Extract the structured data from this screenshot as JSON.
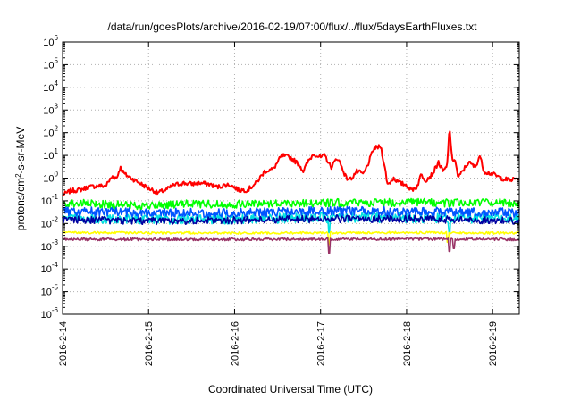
{
  "chart_data": {
    "type": "line",
    "title": "/data/run/goesPlots/archive/2016-02-19/07:00/flux/../flux/5daysEarthFluxes.txt",
    "xlabel": "Coordinated Universal Time (UTC)",
    "ylabel": "protons/cm²-s-sr-MeV",
    "ylabel_parts": [
      "protons/cm",
      "2",
      "-s-sr-MeV"
    ],
    "y_scale": "log",
    "ylim": [
      1e-06,
      1000000.0
    ],
    "y_ticks": [
      {
        "exp": "-6",
        "value": 1e-06
      },
      {
        "exp": "-5",
        "value": 1e-05
      },
      {
        "exp": "-4",
        "value": 0.0001
      },
      {
        "exp": "-3",
        "value": 0.001
      },
      {
        "exp": "-2",
        "value": 0.01
      },
      {
        "exp": "-1",
        "value": 0.1
      },
      {
        "exp": "0",
        "value": 1
      },
      {
        "exp": "1",
        "value": 10
      },
      {
        "exp": "2",
        "value": 100
      },
      {
        "exp": "3",
        "value": 1000
      },
      {
        "exp": "4",
        "value": 10000
      },
      {
        "exp": "5",
        "value": 100000
      },
      {
        "exp": "6",
        "value": 1000000
      }
    ],
    "x_ticks": [
      "2016-2-14",
      "2016-2-15",
      "2016-2-16",
      "2016-2-17",
      "2016-2-18",
      "2016-2-19"
    ],
    "xlim_days": [
      0,
      5.31
    ],
    "grid": true,
    "legend": "none",
    "series": [
      {
        "color": "#ff0000",
        "base_points": [
          [
            0.0,
            0.18
          ],
          [
            0.1,
            0.28
          ],
          [
            0.2,
            0.3
          ],
          [
            0.3,
            0.4
          ],
          [
            0.4,
            0.45
          ],
          [
            0.5,
            0.45
          ],
          [
            0.58,
            1.2
          ],
          [
            0.63,
            1.0
          ],
          [
            0.67,
            3.0
          ],
          [
            0.72,
            1.5
          ],
          [
            0.8,
            1.0
          ],
          [
            0.9,
            0.6
          ],
          [
            1.0,
            0.35
          ],
          [
            1.05,
            0.3
          ],
          [
            1.1,
            0.22
          ],
          [
            1.2,
            0.3
          ],
          [
            1.3,
            0.5
          ],
          [
            1.4,
            0.6
          ],
          [
            1.5,
            0.55
          ],
          [
            1.6,
            0.6
          ],
          [
            1.7,
            0.55
          ],
          [
            1.8,
            0.4
          ],
          [
            1.9,
            0.5
          ],
          [
            1.95,
            0.5
          ],
          [
            2.05,
            0.3
          ],
          [
            2.15,
            0.3
          ],
          [
            2.25,
            0.6
          ],
          [
            2.35,
            2.0
          ],
          [
            2.45,
            2.5
          ],
          [
            2.55,
            10.0
          ],
          [
            2.65,
            8.0
          ],
          [
            2.75,
            4.0
          ],
          [
            2.8,
            2.0
          ],
          [
            2.85,
            5.0
          ],
          [
            2.92,
            12.0
          ],
          [
            3.0,
            8.0
          ],
          [
            3.05,
            10.0
          ],
          [
            3.12,
            3.0
          ],
          [
            3.2,
            8.0
          ],
          [
            3.3,
            1.0
          ],
          [
            3.35,
            0.9
          ],
          [
            3.42,
            2.0
          ],
          [
            3.5,
            1.5
          ],
          [
            3.55,
            4.0
          ],
          [
            3.62,
            20.0
          ],
          [
            3.7,
            25.0
          ],
          [
            3.75,
            2.5
          ],
          [
            3.78,
            0.5
          ],
          [
            3.85,
            1.0
          ],
          [
            3.92,
            0.6
          ],
          [
            4.0,
            0.5
          ],
          [
            4.05,
            0.3
          ],
          [
            4.12,
            0.4
          ],
          [
            4.17,
            1.5
          ],
          [
            4.22,
            0.8
          ],
          [
            4.3,
            1.5
          ],
          [
            4.37,
            5.0
          ],
          [
            4.42,
            2.0
          ],
          [
            4.47,
            3.0
          ],
          [
            4.5,
            200
          ],
          [
            4.53,
            5.0
          ],
          [
            4.56,
            8.0
          ],
          [
            4.6,
            1.0
          ],
          [
            4.65,
            2.0
          ],
          [
            4.72,
            5.0
          ],
          [
            4.8,
            3.0
          ],
          [
            4.85,
            10.0
          ],
          [
            4.9,
            2.0
          ],
          [
            5.0,
            1.5
          ],
          [
            5.1,
            1.0
          ],
          [
            5.2,
            0.8
          ],
          [
            5.31,
            1.0
          ]
        ],
        "jitter_decades": 0.1,
        "dips": [],
        "stroke_width": 2.0
      },
      {
        "color": "#00ff00",
        "base_points": [
          [
            0.0,
            0.08
          ],
          [
            0.5,
            0.07
          ],
          [
            1.0,
            0.06
          ],
          [
            1.5,
            0.075
          ],
          [
            2.0,
            0.07
          ],
          [
            2.5,
            0.08
          ],
          [
            3.0,
            0.08
          ],
          [
            3.5,
            0.085
          ],
          [
            4.0,
            0.085
          ],
          [
            4.5,
            0.08
          ],
          [
            5.0,
            0.085
          ],
          [
            5.31,
            0.08
          ]
        ],
        "jitter_decades": 0.18,
        "dips": [],
        "stroke_width": 1.6
      },
      {
        "color": "#00e0e0",
        "base_points": [
          [
            0.0,
            0.018
          ],
          [
            1.0,
            0.015
          ],
          [
            2.0,
            0.016
          ],
          [
            3.0,
            0.018
          ],
          [
            4.0,
            0.018
          ],
          [
            5.31,
            0.016
          ]
        ],
        "jitter_decades": 0.22,
        "dips": [
          [
            3.1,
            0.004
          ],
          [
            4.5,
            0.004
          ]
        ],
        "stroke_width": 1.6
      },
      {
        "color": "#0055ff",
        "base_points": [
          [
            0.0,
            0.035
          ],
          [
            1.0,
            0.03
          ],
          [
            2.0,
            0.03
          ],
          [
            3.0,
            0.035
          ],
          [
            4.0,
            0.035
          ],
          [
            5.31,
            0.03
          ]
        ],
        "jitter_decades": 0.2,
        "dips": [],
        "stroke_width": 1.6
      },
      {
        "color": "#0000a0",
        "base_points": [
          [
            0.0,
            0.015
          ],
          [
            1.0,
            0.013
          ],
          [
            2.0,
            0.014
          ],
          [
            3.0,
            0.016
          ],
          [
            4.0,
            0.016
          ],
          [
            5.31,
            0.013
          ]
        ],
        "jitter_decades": 0.16,
        "dips": [],
        "stroke_width": 1.6
      },
      {
        "color": "#ffff00",
        "base_points": [
          [
            0.0,
            0.004
          ],
          [
            2.0,
            0.0038
          ],
          [
            4.0,
            0.004
          ],
          [
            5.31,
            0.0038
          ]
        ],
        "jitter_decades": 0.05,
        "dips": [
          [
            3.1,
            0.0012
          ],
          [
            4.48,
            0.0015
          ]
        ],
        "stroke_width": 1.6
      },
      {
        "color": "#993366",
        "base_points": [
          [
            0.0,
            0.002
          ],
          [
            2.0,
            0.002
          ],
          [
            4.0,
            0.0021
          ],
          [
            5.31,
            0.002
          ]
        ],
        "jitter_decades": 0.06,
        "dips": [
          [
            3.1,
            0.0005
          ],
          [
            4.5,
            0.0006
          ],
          [
            4.55,
            0.0008
          ]
        ],
        "stroke_width": 1.6
      }
    ]
  }
}
